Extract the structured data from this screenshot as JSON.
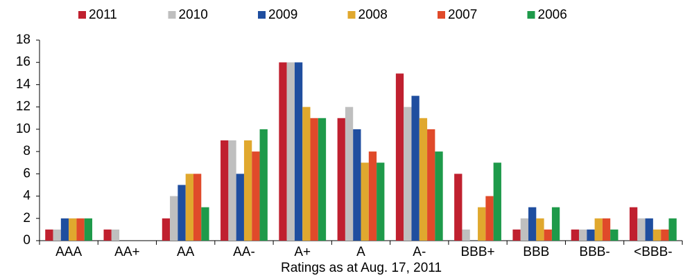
{
  "chart_data": {
    "type": "bar",
    "x_label": "Ratings as at Aug. 17, 2011",
    "categories": [
      "AAA",
      "AA+",
      "AA",
      "AA-",
      "A+",
      "A",
      "A-",
      "BBB+",
      "BBB",
      "BBB-",
      "<BBB-"
    ],
    "series": [
      {
        "name": "2011",
        "color": "#c0202f",
        "values": [
          1,
          1,
          2,
          9,
          16,
          11,
          15,
          6,
          1,
          1,
          3
        ]
      },
      {
        "name": "2010",
        "color": "#bfbfbf",
        "values": [
          1,
          1,
          4,
          9,
          16,
          12,
          12,
          1,
          2,
          1,
          2
        ]
      },
      {
        "name": "2009",
        "color": "#1f4e9f",
        "values": [
          2,
          0,
          5,
          6,
          16,
          10,
          13,
          0,
          3,
          1,
          2
        ]
      },
      {
        "name": "2008",
        "color": "#e0a82e",
        "values": [
          2,
          0,
          6,
          9,
          12,
          7,
          11,
          3,
          2,
          2,
          1
        ]
      },
      {
        "name": "2007",
        "color": "#e04a2a",
        "values": [
          2,
          0,
          6,
          8,
          11,
          8,
          10,
          4,
          1,
          2,
          1
        ]
      },
      {
        "name": "2006",
        "color": "#1e9a4a",
        "values": [
          2,
          0,
          3,
          10,
          11,
          7,
          8,
          7,
          3,
          1,
          2
        ]
      }
    ],
    "ylim": [
      0,
      18
    ],
    "yticks": [
      0,
      2,
      4,
      6,
      8,
      10,
      12,
      14,
      16,
      18
    ],
    "grid": false,
    "legend": "top"
  }
}
